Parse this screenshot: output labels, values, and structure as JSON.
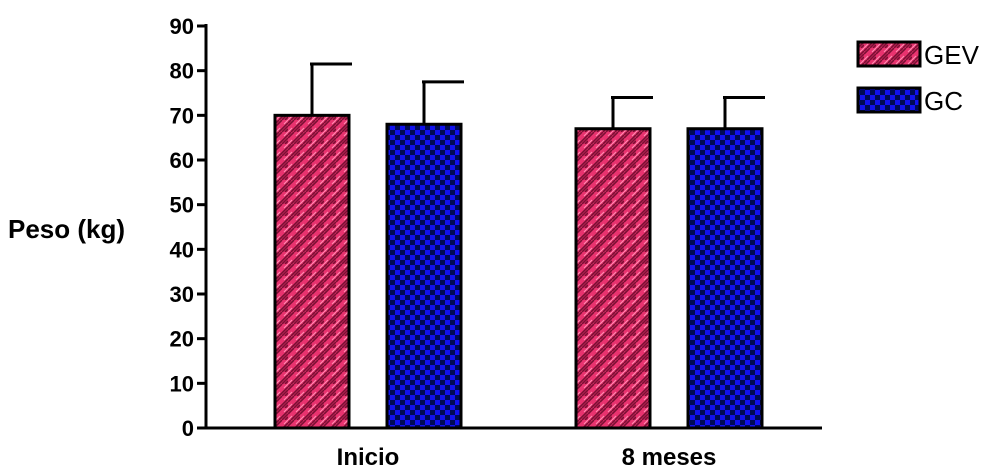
{
  "chart_data": {
    "type": "bar",
    "title": "",
    "xlabel": "",
    "ylabel": "Peso (kg)",
    "ylim": [
      0,
      90
    ],
    "yticks": [
      0,
      10,
      20,
      30,
      40,
      50,
      60,
      70,
      80,
      90
    ],
    "categories": [
      "Inicio",
      "8 meses"
    ],
    "series": [
      {
        "name": "GEV",
        "values": [
          70,
          67
        ],
        "error": [
          11.5,
          7
        ],
        "color": "#e8336f",
        "pattern": "brick"
      },
      {
        "name": "GC",
        "values": [
          68,
          67
        ],
        "error": [
          9.5,
          7
        ],
        "color": "#1111ee",
        "pattern": "checker"
      }
    ],
    "grid": false,
    "error_bars": "upper",
    "legend_position": "top-right"
  }
}
